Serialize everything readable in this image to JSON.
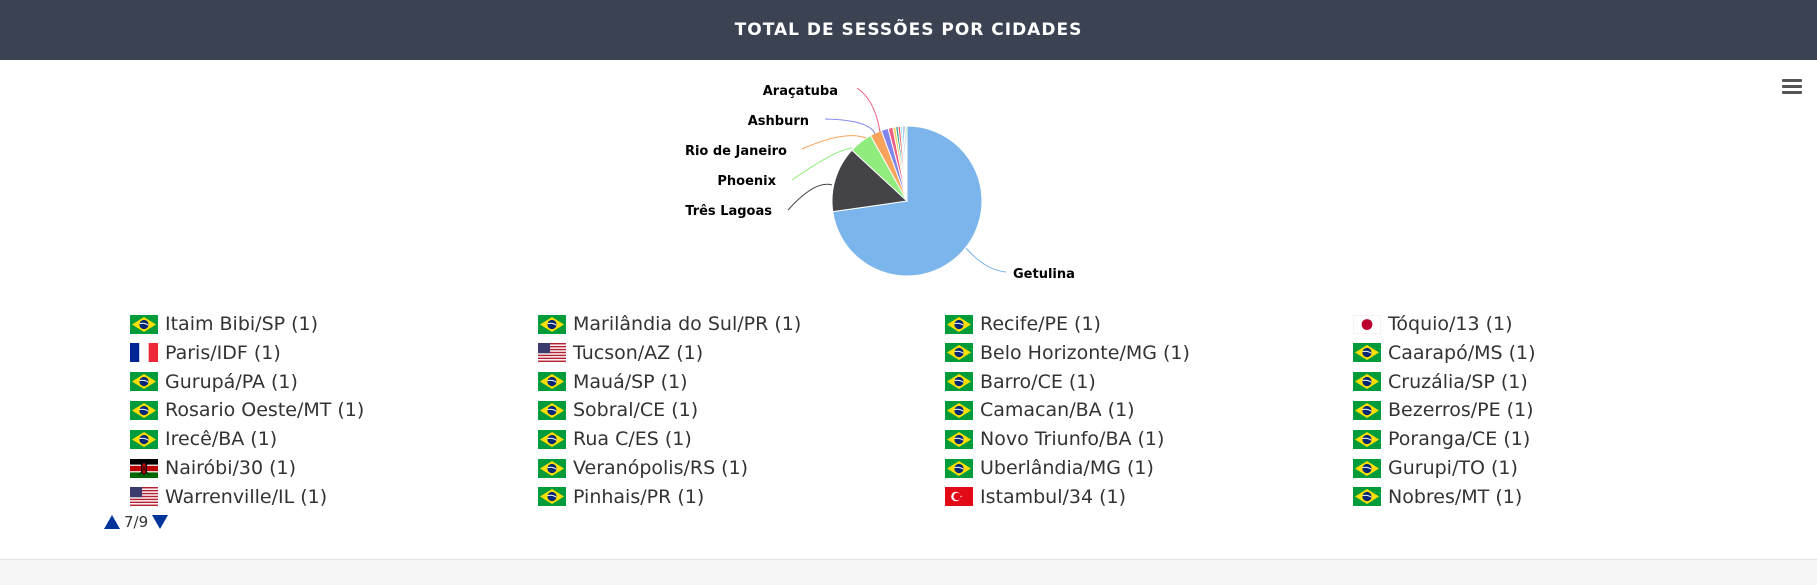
{
  "header": {
    "title": "TOTAL DE SESSÕES POR CIDADES"
  },
  "chart_data": {
    "type": "pie",
    "title": "TOTAL DE SESSÕES POR CIDADES",
    "slices": [
      {
        "name": "Getulina",
        "value": 72,
        "color": "#7cb5ec"
      },
      {
        "name": "Três Lagoas",
        "value": 14,
        "color": "#434348"
      },
      {
        "name": "Phoenix",
        "value": 5,
        "color": "#90ed7d"
      },
      {
        "name": "Rio de Janeiro",
        "value": 2.5,
        "color": "#f7a35c"
      },
      {
        "name": "Ashburn",
        "value": 1.5,
        "color": "#8085e9"
      },
      {
        "name": "Araçatuba",
        "value": 1,
        "color": "#f15c80"
      },
      {
        "name": "",
        "value": 0.6,
        "color": "#e4d354"
      },
      {
        "name": "",
        "value": 0.5,
        "color": "#2b908f"
      },
      {
        "name": "",
        "value": 0.5,
        "color": "#f45b5b"
      },
      {
        "name": "",
        "value": 0.4,
        "color": "#91e8e1"
      },
      {
        "name": "",
        "value": 0.4,
        "color": "#7cb5ec"
      },
      {
        "name": "",
        "value": 0.3,
        "color": "#434348"
      },
      {
        "name": "",
        "value": 0.3,
        "color": "#90ed7d"
      }
    ],
    "legend": {
      "columns": [
        [
          {
            "label": "Itaim Bibi/SP (1)",
            "flag": "br"
          },
          {
            "label": "Paris/IDF (1)",
            "flag": "fr"
          },
          {
            "label": "Gurupá/PA (1)",
            "flag": "br"
          },
          {
            "label": "Rosario Oeste/MT (1)",
            "flag": "br"
          },
          {
            "label": "Irecê/BA (1)",
            "flag": "br"
          },
          {
            "label": "Nairóbi/30 (1)",
            "flag": "ke"
          },
          {
            "label": "Warrenville/IL (1)",
            "flag": "us"
          }
        ],
        [
          {
            "label": "Marilândia do Sul/PR (1)",
            "flag": "br"
          },
          {
            "label": "Tucson/AZ (1)",
            "flag": "us"
          },
          {
            "label": "Mauá/SP (1)",
            "flag": "br"
          },
          {
            "label": "Sobral/CE (1)",
            "flag": "br"
          },
          {
            "label": "Rua C/ES (1)",
            "flag": "br"
          },
          {
            "label": "Veranópolis/RS (1)",
            "flag": "br"
          },
          {
            "label": "Pinhais/PR (1)",
            "flag": "br"
          }
        ],
        [
          {
            "label": "Recife/PE (1)",
            "flag": "br"
          },
          {
            "label": "Belo Horizonte/MG (1)",
            "flag": "br"
          },
          {
            "label": "Barro/CE (1)",
            "flag": "br"
          },
          {
            "label": "Camacan/BA (1)",
            "flag": "br"
          },
          {
            "label": "Novo Triunfo/BA (1)",
            "flag": "br"
          },
          {
            "label": "Uberlândia/MG (1)",
            "flag": "br"
          },
          {
            "label": "Istambul/34 (1)",
            "flag": "tr"
          }
        ],
        [
          {
            "label": "Tóquio/13 (1)",
            "flag": "jp"
          },
          {
            "label": "Caarapó/MS (1)",
            "flag": "br"
          },
          {
            "label": "Cruzália/SP (1)",
            "flag": "br"
          },
          {
            "label": "Bezerros/PE (1)",
            "flag": "br"
          },
          {
            "label": "Poranga/CE (1)",
            "flag": "br"
          },
          {
            "label": "Gurupi/TO (1)",
            "flag": "br"
          },
          {
            "label": "Nobres/MT (1)",
            "flag": "br"
          }
        ]
      ]
    },
    "legend_page": "7/9"
  }
}
